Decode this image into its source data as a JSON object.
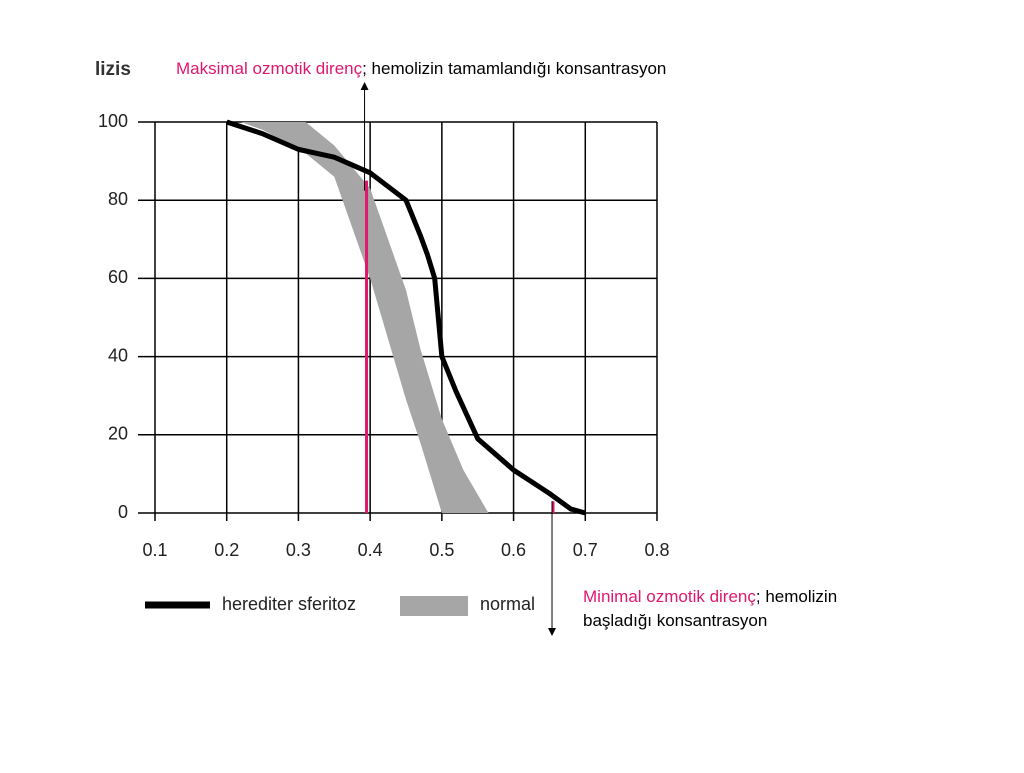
{
  "chart_data": {
    "type": "line",
    "y_label": "lizis",
    "xlim": [
      0.1,
      0.8
    ],
    "xticks": [
      0.1,
      0.2,
      0.3,
      0.4,
      0.5,
      0.6,
      0.7,
      0.8
    ],
    "ylim": [
      0,
      100
    ],
    "yticks": [
      0,
      20,
      40,
      60,
      80,
      100
    ],
    "grid": true,
    "legend": "bottom",
    "series": [
      {
        "name": "herediter sferitoz",
        "color": "#000000",
        "x": [
          0.2,
          0.25,
          0.3,
          0.35,
          0.4,
          0.45,
          0.47,
          0.48,
          0.49,
          0.495,
          0.5,
          0.52,
          0.55,
          0.6,
          0.65,
          0.68,
          0.7
        ],
        "values": [
          100,
          97,
          93,
          91,
          87,
          80,
          71,
          66,
          60,
          50,
          40,
          31,
          19,
          11,
          5,
          1,
          0
        ]
      },
      {
        "name": "normal",
        "color": "#a6a6a6",
        "x": [
          0.22,
          0.25,
          0.3,
          0.31,
          0.35,
          0.4,
          0.45,
          0.47,
          0.5,
          0.53,
          0.565
        ],
        "high": [
          100,
          100,
          100,
          100,
          94,
          83,
          57,
          42,
          24,
          11,
          0
        ],
        "low": [
          100,
          98,
          93,
          92,
          86,
          60,
          29,
          18,
          0,
          0,
          0
        ]
      }
    ],
    "markers": [
      {
        "x": 0.395,
        "y": 85,
        "color": "#e0176f",
        "arrow": "up"
      },
      {
        "x": 0.655,
        "y": 3,
        "color": "#e0176f",
        "arrow": "down"
      }
    ],
    "annotations": [
      {
        "lines": [
          [
            {
              "text": "Maksimal ozmotik direnç",
              "color": "#e0176f"
            },
            {
              "text": "; hemolizin tamamlandığı  konsantrasyon",
              "color": "#000000"
            }
          ]
        ]
      },
      {
        "lines": [
          [
            {
              "text": "Minimal ozmotik direnç",
              "color": "#e0176f"
            },
            {
              "text": "; hemolizin",
              "color": "#000000"
            }
          ],
          [
            {
              "text": "başladığı konsantrasyon",
              "color": "#000000"
            }
          ]
        ]
      }
    ]
  }
}
